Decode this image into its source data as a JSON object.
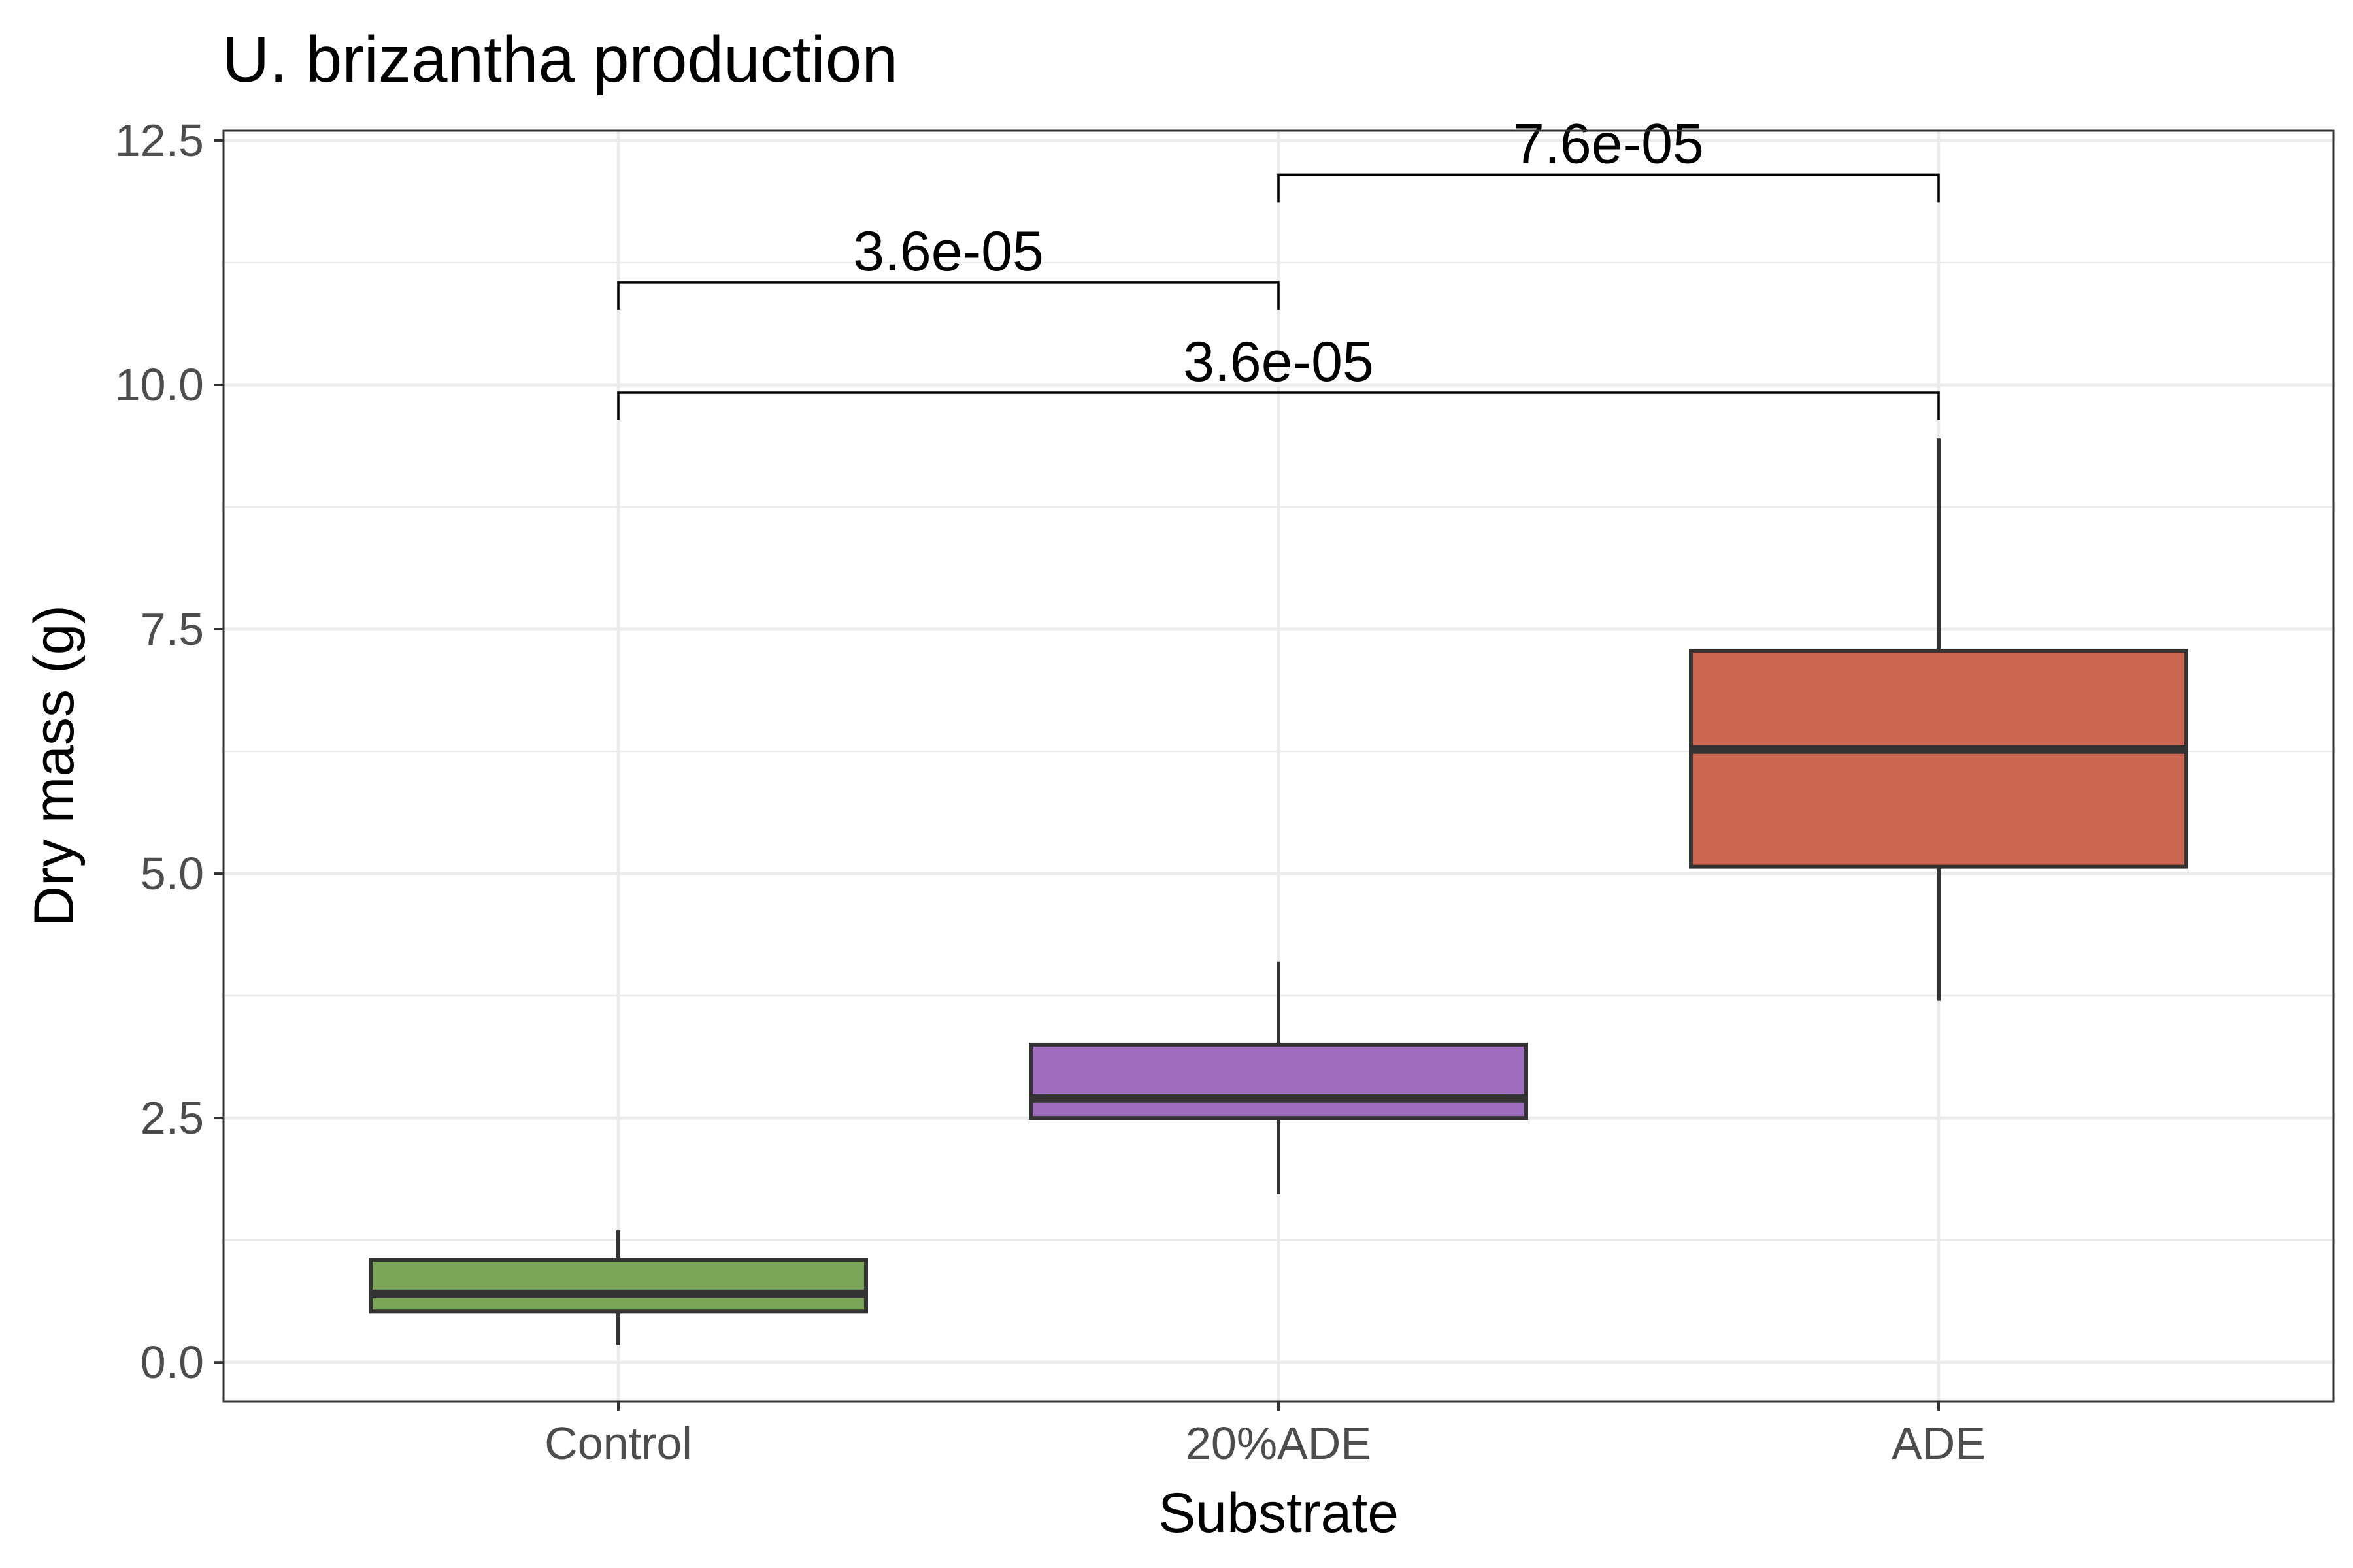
{
  "chart_data": {
    "type": "box",
    "title": "U. brizantha production",
    "xlabel": "Substrate",
    "ylabel": "Dry mass (g)",
    "ylim": [
      -0.4,
      12.6
    ],
    "yticks": [
      0.0,
      2.5,
      5.0,
      7.5,
      10.0,
      12.5
    ],
    "ytick_labels": [
      "0.0",
      "2.5",
      "5.0",
      "7.5",
      "10.0",
      "12.5"
    ],
    "grid": true,
    "legend": "none",
    "categories": [
      "Control",
      "20%ADE",
      "ADE"
    ],
    "boxes": [
      {
        "category": "Control",
        "min": 0.18,
        "q1": 0.52,
        "median": 0.7,
        "q3": 1.05,
        "max": 1.35,
        "color": "#7aa457"
      },
      {
        "category": "20%ADE",
        "min": 1.72,
        "q1": 2.5,
        "median": 2.7,
        "q3": 3.25,
        "max": 4.1,
        "color": "#a06ebe"
      },
      {
        "category": "ADE",
        "min": 3.7,
        "q1": 5.07,
        "median": 6.27,
        "q3": 7.28,
        "max": 9.45,
        "color": "#cb6751"
      }
    ],
    "comparisons": [
      {
        "from": "20%ADE",
        "to": "ADE",
        "label": "7.6e-05",
        "y": 12.15
      },
      {
        "from": "Control",
        "to": "20%ADE",
        "label": "3.6e-05",
        "y": 11.05
      },
      {
        "from": "Control",
        "to": "ADE",
        "label": "3.6e-05",
        "y": 9.92
      }
    ]
  }
}
